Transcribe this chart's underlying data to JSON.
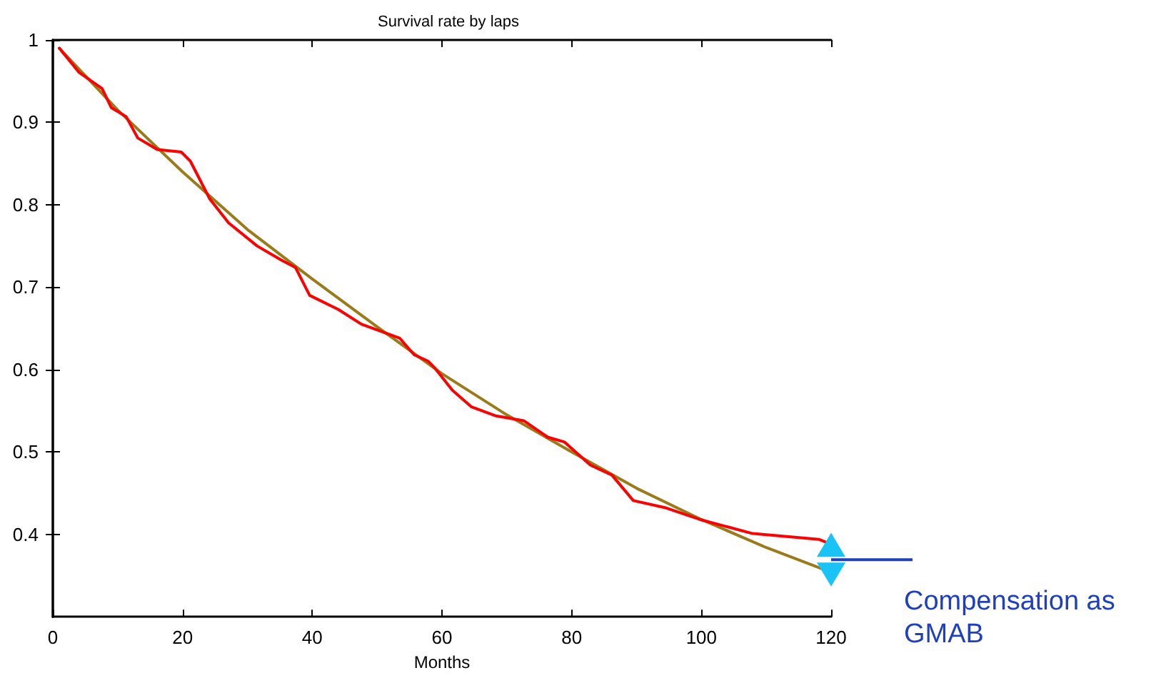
{
  "chart_data": {
    "type": "line",
    "title": "Survival rate by laps",
    "xlabel": "Months",
    "xlim": [
      0,
      120
    ],
    "xticks": [
      0,
      20,
      40,
      60,
      80,
      100,
      120
    ],
    "ylim": [
      0.3,
      1
    ],
    "yticks": [
      0.4,
      0.5,
      0.6,
      0.7,
      0.8,
      0.9,
      1
    ],
    "grid": false,
    "marker": "none",
    "line_style": "solid",
    "series": [
      {
        "color": "#9a7b1a",
        "x": [
          1,
          10,
          20,
          30,
          40,
          50,
          60,
          70,
          80,
          90,
          100,
          110,
          120
        ],
        "values": [
          0.99,
          0.915,
          0.84,
          0.77,
          0.71,
          0.652,
          0.595,
          0.545,
          0.5,
          0.456,
          0.418,
          0.384,
          0.354
        ]
      },
      {
        "color": "#ff0000",
        "x": [
          1,
          4,
          7.6,
          9,
          11.3,
          13.1,
          16.1,
          19.8,
          21.2,
          22.7,
          24.2,
          27.1,
          31.5,
          35.2,
          37.4,
          39.6,
          44,
          47.6,
          53.5,
          55.7,
          57.9,
          59,
          61.6,
          64.5,
          68.2,
          72.6,
          76.3,
          78.9,
          82.9,
          86.2,
          89.5,
          94.6,
          99.8,
          107.9,
          118.1,
          120
        ],
        "values": [
          0.99,
          0.961,
          0.941,
          0.918,
          0.907,
          0.881,
          0.867,
          0.864,
          0.853,
          0.83,
          0.807,
          0.778,
          0.75,
          0.733,
          0.724,
          0.69,
          0.673,
          0.655,
          0.638,
          0.618,
          0.61,
          0.601,
          0.575,
          0.555,
          0.544,
          0.538,
          0.518,
          0.512,
          0.484,
          0.472,
          0.441,
          0.432,
          0.418,
          0.401,
          0.394,
          0.388
        ]
      }
    ],
    "annotations": [
      "Compensation as GMAB"
    ]
  }
}
